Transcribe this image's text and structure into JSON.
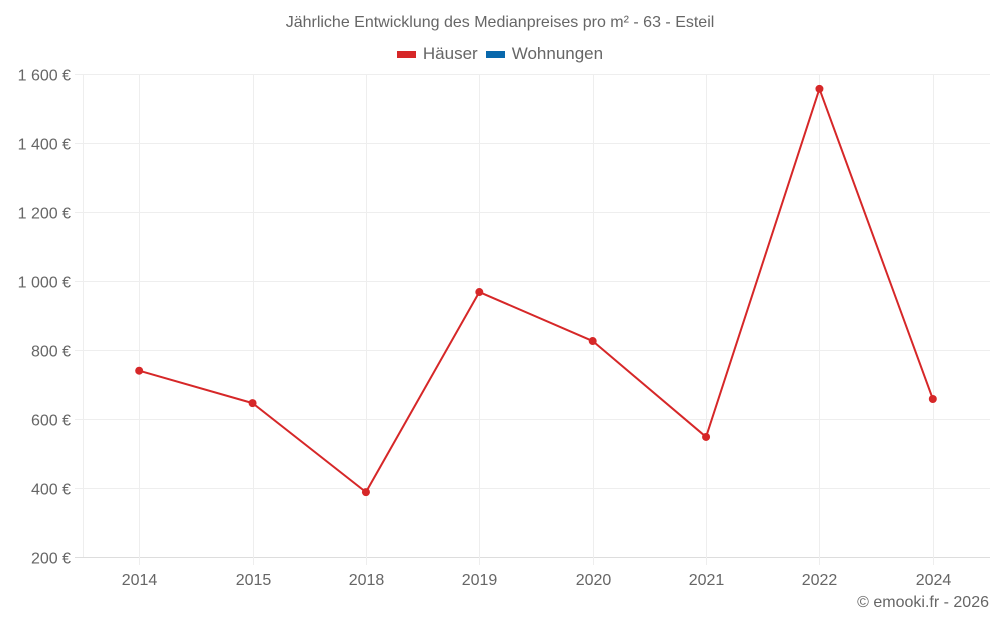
{
  "title": "Jährliche Entwicklung des Medianpreises pro m² - 63 - Esteil",
  "legend": [
    {
      "label": "Häuser",
      "color": "#d62728"
    },
    {
      "label": "Wohnungen",
      "color": "#0868ac"
    }
  ],
  "footer": "© emooki.fr - 2026",
  "chart_data": {
    "type": "line",
    "title": "Jährliche Entwicklung des Medianpreises pro m² - 63 - Esteil",
    "xlabel": "",
    "ylabel": "",
    "categories": [
      "2014",
      "2015",
      "2018",
      "2019",
      "2020",
      "2021",
      "2022",
      "2024"
    ],
    "series": [
      {
        "name": "Häuser",
        "color": "#d62728",
        "values": [
          740,
          646,
          388,
          968,
          826,
          548,
          1557,
          658
        ]
      },
      {
        "name": "Wohnungen",
        "color": "#0868ac",
        "values": []
      }
    ],
    "ylim": [
      200,
      1600
    ],
    "yticks": [
      200,
      400,
      600,
      800,
      1000,
      1200,
      1400,
      1600
    ],
    "ytick_labels": [
      "200 €",
      "400 €",
      "600 €",
      "800 €",
      "1 000 €",
      "1 200 €",
      "1 400 €",
      "1 600 €"
    ],
    "grid": true,
    "legend_position": "top"
  }
}
